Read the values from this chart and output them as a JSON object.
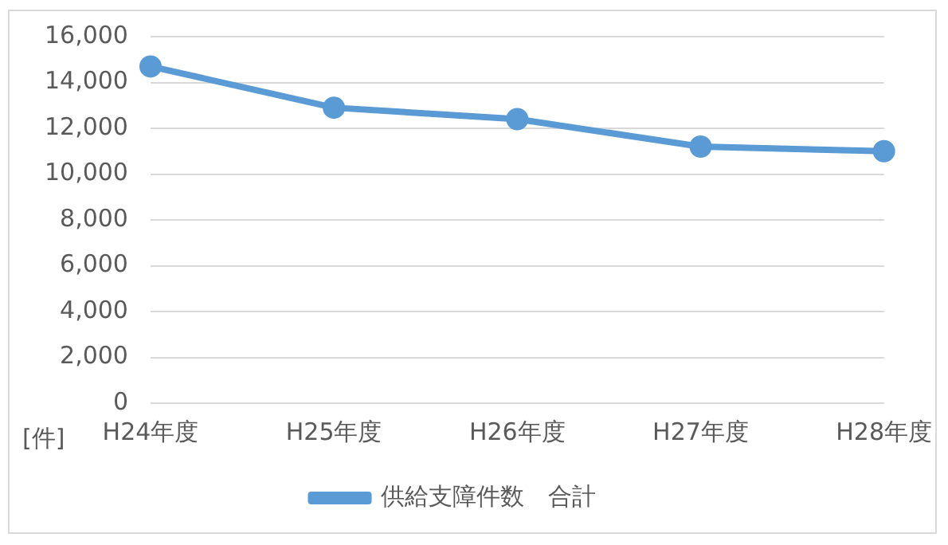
{
  "chart_data": {
    "type": "line",
    "ylabel": "[件]",
    "categories": [
      "H24年度",
      "H25年度",
      "H26年度",
      "H27年度",
      "H28年度"
    ],
    "series": [
      {
        "name": "供給支障件数　合計",
        "color": "#5b9bd5",
        "values": [
          14700,
          12900,
          12400,
          11200,
          11000
        ]
      }
    ],
    "ylim": [
      0,
      16000
    ],
    "yticks": [
      0,
      {
        "value": 2000,
        "label": "2,000"
      },
      {
        "value": 4000,
        "label": "4,000"
      },
      {
        "value": 6000,
        "label": "6,000"
      },
      {
        "value": 8000,
        "label": "8,000"
      },
      {
        "value": 10000,
        "label": "10,000"
      },
      {
        "value": 12000,
        "label": "12,000"
      },
      {
        "value": 14000,
        "label": "14,000"
      },
      {
        "value": 16000,
        "label": "16,000"
      }
    ],
    "grid": "y",
    "legend": "bottom",
    "marker": "circle",
    "line_style": "solid"
  }
}
